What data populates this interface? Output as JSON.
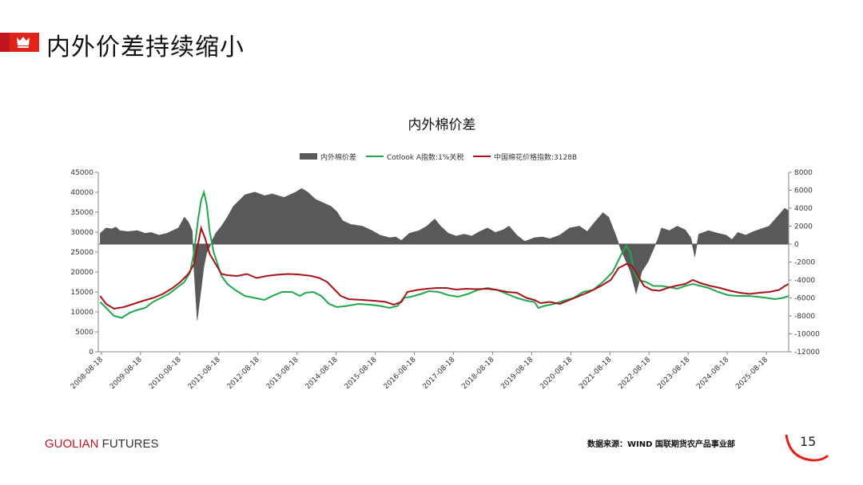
{
  "header": {
    "title": "内外价差持续缩小",
    "logo_icon": "crown-icon"
  },
  "footer": {
    "brand_part1": "GUOLIAN",
    "brand_part2": " FUTURES",
    "source": "数据来源：WIND 国联期货农产品事业部",
    "page_number": "15"
  },
  "colors": {
    "accent": "#e2231a",
    "spread": "#595959",
    "cotlook": "#1fa84d",
    "china_cc": "#a8121a"
  },
  "chart_data": {
    "type": "bar+line",
    "title": "内外棉价差",
    "legend": [
      "内外棉价差",
      "Cotlook A指数:1%关税",
      "中国棉花价格指数:3128B"
    ],
    "legend_position": "top",
    "x_tick_labels": [
      "2008-08-18",
      "2009-08-18",
      "2010-08-18",
      "2011-08-18",
      "2012-08-18",
      "2013-08-18",
      "2014-08-18",
      "2015-08-18",
      "2016-08-18",
      "2017-08-18",
      "2018-08-18",
      "2019-08-18",
      "2020-08-18",
      "2021-08-18",
      "2022-08-18",
      "2023-08-18",
      "2024-08-18",
      "2025-08-18"
    ],
    "x_range": [
      2008.55,
      2026.2
    ],
    "y_left": {
      "min": 0,
      "max": 45000,
      "step": 5000
    },
    "y_right": {
      "min": -12000,
      "max": 8000,
      "step": 2000
    },
    "gridlines": false,
    "series": [
      {
        "name": "内外棉价差",
        "axis": "right",
        "kind": "area",
        "points": [
          [
            2008.6,
            1200
          ],
          [
            2008.75,
            1800
          ],
          [
            2008.9,
            1700
          ],
          [
            2009.0,
            1900
          ],
          [
            2009.1,
            1500
          ],
          [
            2009.3,
            1400
          ],
          [
            2009.55,
            1500
          ],
          [
            2009.75,
            1200
          ],
          [
            2009.9,
            1300
          ],
          [
            2010.1,
            1000
          ],
          [
            2010.3,
            1200
          ],
          [
            2010.5,
            1600
          ],
          [
            2010.6,
            1800
          ],
          [
            2010.75,
            3000
          ],
          [
            2010.85,
            2500
          ],
          [
            2010.95,
            1500
          ],
          [
            2011.0,
            -3000
          ],
          [
            2011.08,
            -8500
          ],
          [
            2011.15,
            -6000
          ],
          [
            2011.25,
            -2500
          ],
          [
            2011.32,
            -1000
          ],
          [
            2011.4,
            -300
          ],
          [
            2011.45,
            300
          ],
          [
            2011.55,
            1200
          ],
          [
            2011.7,
            2000
          ],
          [
            2011.85,
            3000
          ],
          [
            2012.0,
            4200
          ],
          [
            2012.3,
            5500
          ],
          [
            2012.55,
            5800
          ],
          [
            2012.8,
            5400
          ],
          [
            2013.0,
            5600
          ],
          [
            2013.3,
            5200
          ],
          [
            2013.6,
            5800
          ],
          [
            2013.75,
            6200
          ],
          [
            2013.9,
            5800
          ],
          [
            2014.1,
            5000
          ],
          [
            2014.3,
            4600
          ],
          [
            2014.5,
            4200
          ],
          [
            2014.65,
            3600
          ],
          [
            2014.8,
            2600
          ],
          [
            2015.0,
            2200
          ],
          [
            2015.3,
            2000
          ],
          [
            2015.55,
            1500
          ],
          [
            2015.75,
            1000
          ],
          [
            2016.0,
            700
          ],
          [
            2016.15,
            800
          ],
          [
            2016.3,
            400
          ],
          [
            2016.5,
            1200
          ],
          [
            2016.75,
            1500
          ],
          [
            2016.95,
            2000
          ],
          [
            2017.15,
            2800
          ],
          [
            2017.3,
            2000
          ],
          [
            2017.5,
            1200
          ],
          [
            2017.7,
            900
          ],
          [
            2017.9,
            1100
          ],
          [
            2018.1,
            900
          ],
          [
            2018.3,
            1400
          ],
          [
            2018.5,
            1800
          ],
          [
            2018.7,
            1300
          ],
          [
            2018.9,
            1600
          ],
          [
            2019.05,
            2000
          ],
          [
            2019.25,
            1000
          ],
          [
            2019.45,
            300
          ],
          [
            2019.7,
            700
          ],
          [
            2019.9,
            800
          ],
          [
            2020.1,
            600
          ],
          [
            2020.35,
            1000
          ],
          [
            2020.6,
            1800
          ],
          [
            2020.85,
            2000
          ],
          [
            2021.05,
            1400
          ],
          [
            2021.25,
            2500
          ],
          [
            2021.45,
            3500
          ],
          [
            2021.6,
            3000
          ],
          [
            2021.78,
            1000
          ],
          [
            2021.9,
            -500
          ],
          [
            2022.0,
            -1500
          ],
          [
            2022.15,
            -3000
          ],
          [
            2022.3,
            -5500
          ],
          [
            2022.45,
            -3000
          ],
          [
            2022.6,
            -2000
          ],
          [
            2022.75,
            -500
          ],
          [
            2022.85,
            500
          ],
          [
            2022.95,
            1800
          ],
          [
            2023.15,
            1500
          ],
          [
            2023.35,
            2000
          ],
          [
            2023.55,
            1600
          ],
          [
            2023.7,
            700
          ],
          [
            2023.8,
            -1400
          ],
          [
            2023.9,
            1100
          ],
          [
            2024.15,
            1500
          ],
          [
            2024.4,
            1200
          ],
          [
            2024.6,
            1000
          ],
          [
            2024.75,
            500
          ],
          [
            2024.9,
            1300
          ],
          [
            2025.1,
            1000
          ],
          [
            2025.3,
            1400
          ],
          [
            2025.5,
            1700
          ],
          [
            2025.7,
            2000
          ],
          [
            2025.9,
            3000
          ],
          [
            2026.1,
            4000
          ],
          [
            2026.2,
            3700
          ]
        ]
      },
      {
        "name": "Cotlook A指数:1%关税",
        "axis": "left",
        "kind": "line",
        "points": [
          [
            2008.6,
            12500
          ],
          [
            2008.75,
            11000
          ],
          [
            2008.95,
            9000
          ],
          [
            2009.15,
            8500
          ],
          [
            2009.35,
            9800
          ],
          [
            2009.55,
            10500
          ],
          [
            2009.75,
            11000
          ],
          [
            2009.95,
            12500
          ],
          [
            2010.15,
            13500
          ],
          [
            2010.35,
            14500
          ],
          [
            2010.55,
            16000
          ],
          [
            2010.75,
            17500
          ],
          [
            2010.9,
            20000
          ],
          [
            2011.0,
            25000
          ],
          [
            2011.1,
            33000
          ],
          [
            2011.18,
            38000
          ],
          [
            2011.25,
            40000
          ],
          [
            2011.32,
            37000
          ],
          [
            2011.4,
            30000
          ],
          [
            2011.5,
            25000
          ],
          [
            2011.6,
            22000
          ],
          [
            2011.7,
            19000
          ],
          [
            2011.85,
            17000
          ],
          [
            2012.05,
            15500
          ],
          [
            2012.3,
            14000
          ],
          [
            2012.55,
            13500
          ],
          [
            2012.8,
            13000
          ],
          [
            2013.0,
            14000
          ],
          [
            2013.25,
            15000
          ],
          [
            2013.5,
            15000
          ],
          [
            2013.7,
            14000
          ],
          [
            2013.85,
            14800
          ],
          [
            2014.05,
            15000
          ],
          [
            2014.25,
            14000
          ],
          [
            2014.45,
            12000
          ],
          [
            2014.65,
            11200
          ],
          [
            2014.9,
            11500
          ],
          [
            2015.2,
            12000
          ],
          [
            2015.5,
            11800
          ],
          [
            2015.75,
            11500
          ],
          [
            2016.0,
            11000
          ],
          [
            2016.2,
            11500
          ],
          [
            2016.35,
            13500
          ],
          [
            2016.55,
            13800
          ],
          [
            2016.8,
            14500
          ],
          [
            2017.0,
            15200
          ],
          [
            2017.25,
            15000
          ],
          [
            2017.5,
            14200
          ],
          [
            2017.75,
            13800
          ],
          [
            2018.0,
            14500
          ],
          [
            2018.25,
            15500
          ],
          [
            2018.5,
            16000
          ],
          [
            2018.75,
            15500
          ],
          [
            2019.0,
            14500
          ],
          [
            2019.25,
            13500
          ],
          [
            2019.5,
            12800
          ],
          [
            2019.7,
            12500
          ],
          [
            2019.8,
            11000
          ],
          [
            2019.95,
            11500
          ],
          [
            2020.2,
            12000
          ],
          [
            2020.45,
            12800
          ],
          [
            2020.7,
            13500
          ],
          [
            2020.95,
            15000
          ],
          [
            2021.2,
            15500
          ],
          [
            2021.45,
            17500
          ],
          [
            2021.7,
            20000
          ],
          [
            2021.85,
            23000
          ],
          [
            2021.95,
            25000
          ],
          [
            2022.05,
            26500
          ],
          [
            2022.15,
            25000
          ],
          [
            2022.25,
            20000
          ],
          [
            2022.35,
            18000
          ],
          [
            2022.55,
            17500
          ],
          [
            2022.75,
            16500
          ],
          [
            2022.95,
            16500
          ],
          [
            2023.15,
            16200
          ],
          [
            2023.35,
            15800
          ],
          [
            2023.55,
            16500
          ],
          [
            2023.75,
            17000
          ],
          [
            2023.95,
            16500
          ],
          [
            2024.15,
            16000
          ],
          [
            2024.4,
            15000
          ],
          [
            2024.65,
            14200
          ],
          [
            2024.9,
            14000
          ],
          [
            2025.15,
            14000
          ],
          [
            2025.4,
            13800
          ],
          [
            2025.65,
            13500
          ],
          [
            2025.85,
            13200
          ],
          [
            2026.05,
            13500
          ],
          [
            2026.2,
            14000
          ]
        ]
      },
      {
        "name": "中国棉花价格指数:3128B",
        "axis": "left",
        "kind": "line",
        "points": [
          [
            2008.6,
            14000
          ],
          [
            2008.75,
            12000
          ],
          [
            2008.95,
            10800
          ],
          [
            2009.2,
            11200
          ],
          [
            2009.45,
            12000
          ],
          [
            2009.7,
            12800
          ],
          [
            2009.95,
            13500
          ],
          [
            2010.2,
            14500
          ],
          [
            2010.45,
            16000
          ],
          [
            2010.65,
            17500
          ],
          [
            2010.85,
            19500
          ],
          [
            2011.0,
            22000
          ],
          [
            2011.1,
            27000
          ],
          [
            2011.18,
            31000
          ],
          [
            2011.28,
            28500
          ],
          [
            2011.4,
            24500
          ],
          [
            2011.55,
            22000
          ],
          [
            2011.7,
            19500
          ],
          [
            2011.85,
            19200
          ],
          [
            2012.1,
            19000
          ],
          [
            2012.35,
            19500
          ],
          [
            2012.6,
            18500
          ],
          [
            2012.85,
            19000
          ],
          [
            2013.1,
            19300
          ],
          [
            2013.4,
            19500
          ],
          [
            2013.65,
            19400
          ],
          [
            2013.85,
            19200
          ],
          [
            2014.0,
            19000
          ],
          [
            2014.2,
            18500
          ],
          [
            2014.4,
            17500
          ],
          [
            2014.55,
            16000
          ],
          [
            2014.75,
            14000
          ],
          [
            2014.95,
            13200
          ],
          [
            2015.3,
            13000
          ],
          [
            2015.6,
            12800
          ],
          [
            2015.9,
            12500
          ],
          [
            2016.1,
            11800
          ],
          [
            2016.3,
            12500
          ],
          [
            2016.45,
            15000
          ],
          [
            2016.7,
            15500
          ],
          [
            2016.95,
            15800
          ],
          [
            2017.2,
            16000
          ],
          [
            2017.45,
            16000
          ],
          [
            2017.7,
            15600
          ],
          [
            2017.95,
            15800
          ],
          [
            2018.2,
            15700
          ],
          [
            2018.5,
            15800
          ],
          [
            2018.75,
            15500
          ],
          [
            2019.0,
            15000
          ],
          [
            2019.25,
            14800
          ],
          [
            2019.5,
            13500
          ],
          [
            2019.7,
            13000
          ],
          [
            2019.85,
            12200
          ],
          [
            2020.1,
            12500
          ],
          [
            2020.35,
            12000
          ],
          [
            2020.6,
            13000
          ],
          [
            2020.85,
            14000
          ],
          [
            2021.1,
            15000
          ],
          [
            2021.4,
            16500
          ],
          [
            2021.65,
            18000
          ],
          [
            2021.85,
            21000
          ],
          [
            2022.05,
            22000
          ],
          [
            2022.2,
            21500
          ],
          [
            2022.35,
            19000
          ],
          [
            2022.5,
            16500
          ],
          [
            2022.7,
            15500
          ],
          [
            2022.9,
            15300
          ],
          [
            2023.1,
            16000
          ],
          [
            2023.3,
            16500
          ],
          [
            2023.55,
            17000
          ],
          [
            2023.75,
            18000
          ],
          [
            2023.95,
            17200
          ],
          [
            2024.2,
            16500
          ],
          [
            2024.45,
            16000
          ],
          [
            2024.7,
            15300
          ],
          [
            2024.95,
            14800
          ],
          [
            2025.2,
            14500
          ],
          [
            2025.45,
            14800
          ],
          [
            2025.7,
            15000
          ],
          [
            2025.95,
            15500
          ],
          [
            2026.1,
            16500
          ],
          [
            2026.2,
            17000
          ]
        ]
      }
    ]
  }
}
